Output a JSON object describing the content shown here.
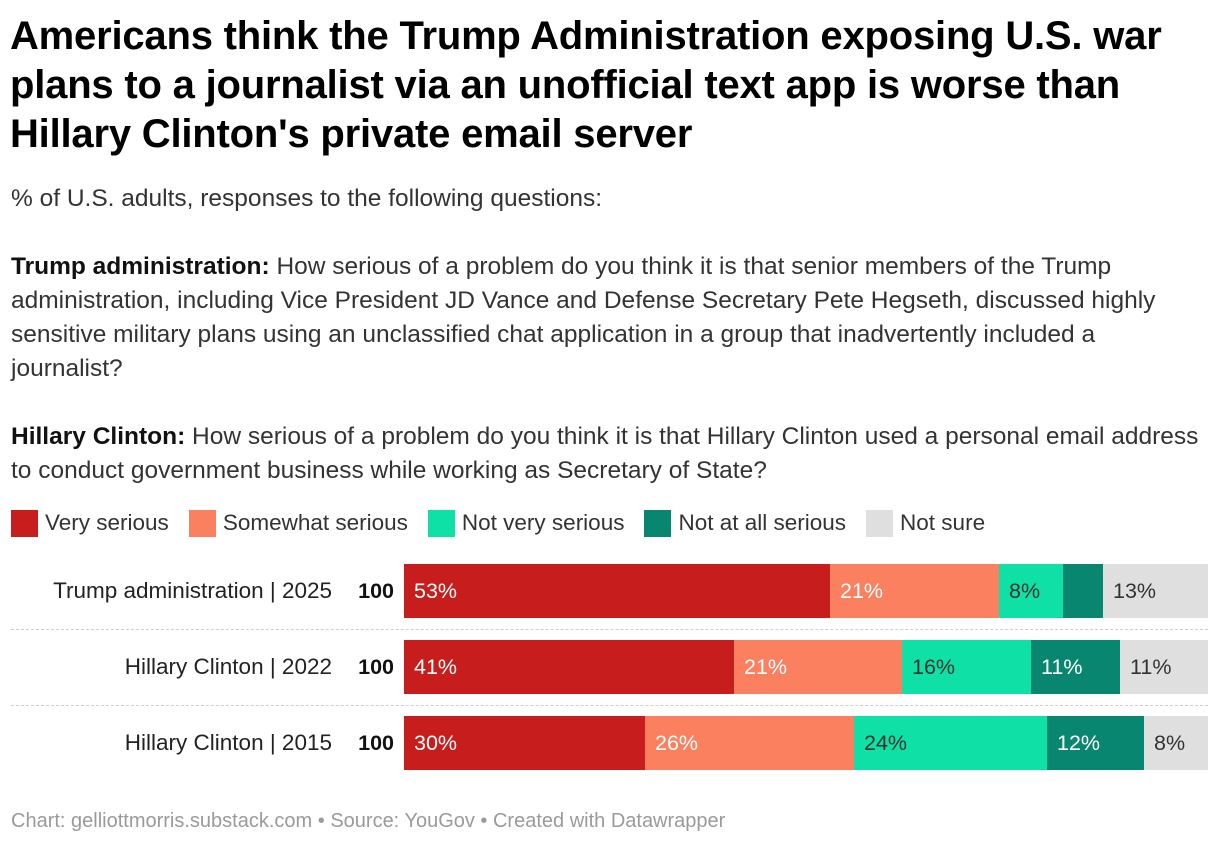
{
  "header": {
    "title": "Americans think the Trump Administration exposing U.S. war plans to a journalist via an unofficial text app is worse than Hillary Clinton's private email server",
    "subtitle_intro": "% of U.S. adults, responses to the following questions:",
    "q1_label": "Trump administration:",
    "q1_text": " How serious of a problem do you think it is that senior members of the Trump administration, including Vice President JD Vance and Defense Secretary Pete Hegseth, discussed highly sensitive military plans using an unclassified chat application in a group that inadvertently included a journalist?",
    "q2_label": "Hillary Clinton:",
    "q2_text": " How serious of a problem do you think it is that Hillary Clinton used a personal email address to conduct government business while working as Secretary of State?"
  },
  "legend": [
    {
      "label": "Very serious",
      "color": "#c71e1d"
    },
    {
      "label": "Somewhat serious",
      "color": "#fa8060"
    },
    {
      "label": "Not very serious",
      "color": "#0fe0a5"
    },
    {
      "label": "Not at all serious",
      "color": "#09866f"
    },
    {
      "label": "Not sure",
      "color": "#dfdfdf"
    }
  ],
  "chart_data": {
    "type": "bar",
    "orientation": "horizontal",
    "stacked": true,
    "categories": [
      "Trump administration | 2025",
      "Hillary Clinton | 2022",
      "Hillary Clinton | 2015"
    ],
    "totals": [
      "100",
      "100",
      "100"
    ],
    "series": [
      {
        "name": "Very serious",
        "color": "#c71e1d",
        "text_color": "#ffffff",
        "values": [
          53,
          41,
          30
        ],
        "labels": [
          "53%",
          "41%",
          "30%"
        ]
      },
      {
        "name": "Somewhat serious",
        "color": "#fa8060",
        "text_color": "#ffffff",
        "values": [
          21,
          21,
          26
        ],
        "labels": [
          "21%",
          "21%",
          "26%"
        ]
      },
      {
        "name": "Not very serious",
        "color": "#0fe0a5",
        "text_color": "#333333",
        "values": [
          8,
          16,
          24
        ],
        "labels": [
          "8%",
          "16%",
          "24%"
        ]
      },
      {
        "name": "Not at all serious",
        "color": "#09866f",
        "text_color": "#ffffff",
        "values": [
          5,
          11,
          12
        ],
        "labels": [
          "",
          "11%",
          "12%"
        ]
      },
      {
        "name": "Not sure",
        "color": "#dfdfdf",
        "text_color": "#333333",
        "values": [
          13,
          11,
          8
        ],
        "labels": [
          "13%",
          "11%",
          "8%"
        ]
      }
    ],
    "xlim": [
      0,
      100
    ],
    "grid": false,
    "legend_position": "top"
  },
  "footer": {
    "credit": "Chart: gelliottmorris.substack.com • Source: YouGov • Created with Datawrapper"
  }
}
